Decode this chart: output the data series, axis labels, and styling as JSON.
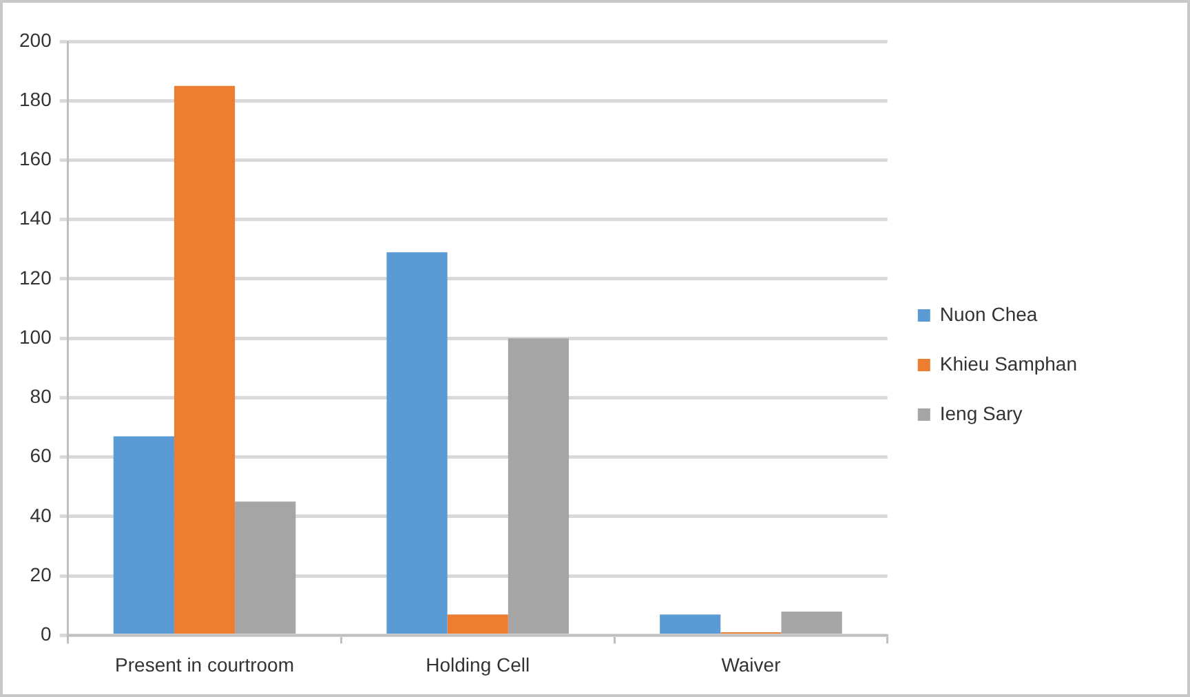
{
  "chart_data": {
    "type": "bar",
    "categories": [
      "Present in courtroom",
      "Holding Cell",
      "Waiver"
    ],
    "series": [
      {
        "name": "Nuon Chea",
        "color": "#5b9bd5",
        "values": [
          67,
          129,
          7
        ]
      },
      {
        "name": "Khieu Samphan",
        "color": "#ed7d31",
        "values": [
          185,
          7,
          1
        ]
      },
      {
        "name": "Ieng Sary",
        "color": "#a5a5a5",
        "values": [
          45,
          100,
          8
        ]
      }
    ],
    "ylim": [
      0,
      200
    ],
    "yticks": [
      0,
      20,
      40,
      60,
      80,
      100,
      120,
      140,
      160,
      180,
      200
    ],
    "grid": "y",
    "legend": "right"
  }
}
